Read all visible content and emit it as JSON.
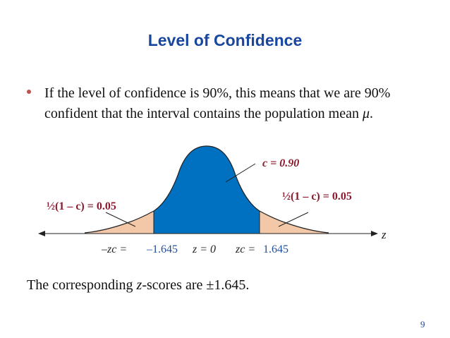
{
  "slide": {
    "title": "Level of Confidence",
    "bullet": {
      "part1": "If the level of confidence is 90%, this means that we are 90% confident that the interval contains the population mean ",
      "mu": "μ",
      "end": "."
    },
    "figure": {
      "center_label": "c = 0.90",
      "left_tail_label": "½(1 – c) = 0.05",
      "right_tail_label": "½(1 – c) = 0.05",
      "axis_label": "z",
      "left_crit_prefix": "–zc = ",
      "left_crit_value": "–1.645",
      "center_z": "z = 0",
      "right_crit_prefix": "zc = ",
      "right_crit_value": "1.645"
    },
    "conclusion": {
      "part1": "The corresponding ",
      "z": "z",
      "part2": "-scores are ±1.645."
    },
    "page_number": "9"
  },
  "colors": {
    "title": "#17479e",
    "bullet": "#c0504d",
    "center_fill": "#0070c0",
    "tail_fill": "#f2c8a8",
    "label_red": "#8b1a2e",
    "value_blue": "#1f4e9a"
  }
}
